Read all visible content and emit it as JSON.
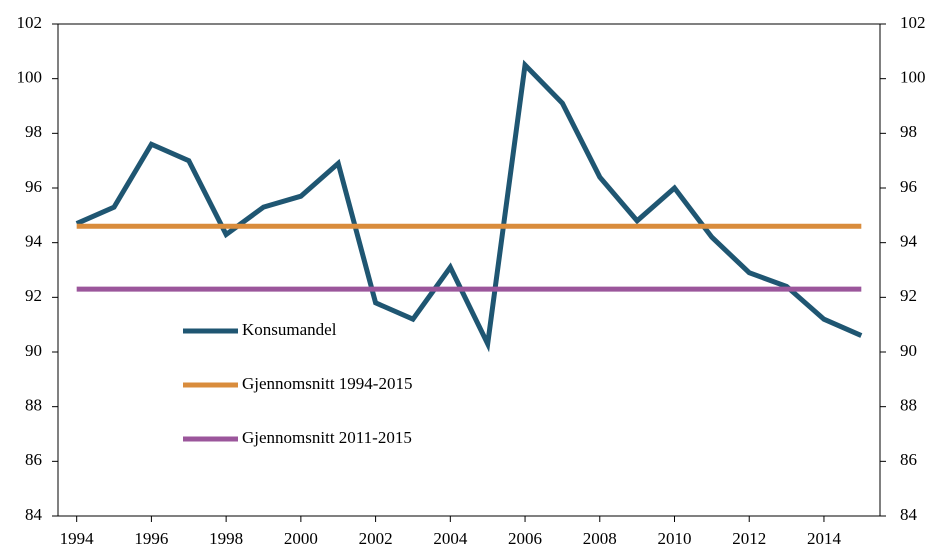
{
  "chart_data": {
    "type": "line",
    "x": [
      1994,
      1995,
      1996,
      1997,
      1998,
      1999,
      2000,
      2001,
      2002,
      2003,
      2004,
      2005,
      2006,
      2007,
      2008,
      2009,
      2010,
      2011,
      2012,
      2013,
      2014,
      2015
    ],
    "series": [
      {
        "name": "Konsumandel",
        "color": "#1f5672",
        "values": [
          94.7,
          95.3,
          97.6,
          97.0,
          94.3,
          95.3,
          95.7,
          96.9,
          91.8,
          91.2,
          93.1,
          90.3,
          100.5,
          99.1,
          96.4,
          94.8,
          96.0,
          94.2,
          92.9,
          92.4,
          91.2,
          90.6
        ]
      },
      {
        "name": "Gjennomsnitt 1994-2015",
        "color": "#d98c3c",
        "values": [
          94.6,
          94.6,
          94.6,
          94.6,
          94.6,
          94.6,
          94.6,
          94.6,
          94.6,
          94.6,
          94.6,
          94.6,
          94.6,
          94.6,
          94.6,
          94.6,
          94.6,
          94.6,
          94.6,
          94.6,
          94.6,
          94.6
        ]
      },
      {
        "name": "Gjennomsnitt 2011-2015",
        "color": "#9b569b",
        "values": [
          92.3,
          92.3,
          92.3,
          92.3,
          92.3,
          92.3,
          92.3,
          92.3,
          92.3,
          92.3,
          92.3,
          92.3,
          92.3,
          92.3,
          92.3,
          92.3,
          92.3,
          92.3,
          92.3,
          92.3,
          92.3,
          92.3
        ]
      }
    ],
    "xlim": [
      1993.5,
      2015.5
    ],
    "xticks": [
      1994,
      1996,
      1998,
      2000,
      2002,
      2004,
      2006,
      2008,
      2010,
      2012,
      2014
    ],
    "ylim": [
      84,
      102
    ],
    "yticks": [
      84,
      86,
      88,
      90,
      92,
      94,
      96,
      98,
      100,
      102
    ],
    "y2lim": [
      84,
      102
    ],
    "y2ticks": [
      84,
      86,
      88,
      90,
      92,
      94,
      96,
      98,
      100,
      102
    ],
    "legend": "center-left"
  }
}
